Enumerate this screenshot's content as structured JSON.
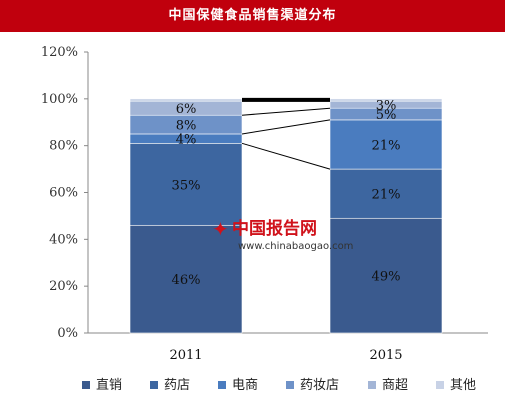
{
  "chart_data": {
    "type": "bar",
    "stacked": true,
    "title": "中国保健食品销售渠道分布",
    "categories": [
      "2011",
      "2015"
    ],
    "series": [
      {
        "name": "直销",
        "values": [
          46,
          49
        ],
        "color": "#3a5a8e"
      },
      {
        "name": "药店",
        "values": [
          35,
          21
        ],
        "color": "#3d66a0"
      },
      {
        "name": "电商",
        "values": [
          4,
          21
        ],
        "color": "#4a7cbf"
      },
      {
        "name": "药妆店",
        "values": [
          8,
          5
        ],
        "color": "#6e92c8"
      },
      {
        "name": "商超",
        "values": [
          6,
          3
        ],
        "color": "#a3b5d6"
      },
      {
        "name": "其他",
        "values": [
          1,
          1
        ],
        "color": "#c8d2e6"
      }
    ],
    "data_labels": {
      "2011": [
        "46%",
        "35%",
        "4%",
        "8%",
        "6%",
        ""
      ],
      "2015": [
        "49%",
        "21%",
        "21%",
        "5%",
        "3%",
        ""
      ]
    },
    "yticks": [
      "0%",
      "20%",
      "40%",
      "60%",
      "80%",
      "100%",
      "120%"
    ],
    "ylim": [
      0,
      120
    ],
    "xlabel": "",
    "ylabel": "",
    "grid": false,
    "legend_position": "bottom"
  },
  "watermark": {
    "brand": "中国报告网",
    "url": "www.chinabaogao.com",
    "logo_glyph": "✦"
  }
}
